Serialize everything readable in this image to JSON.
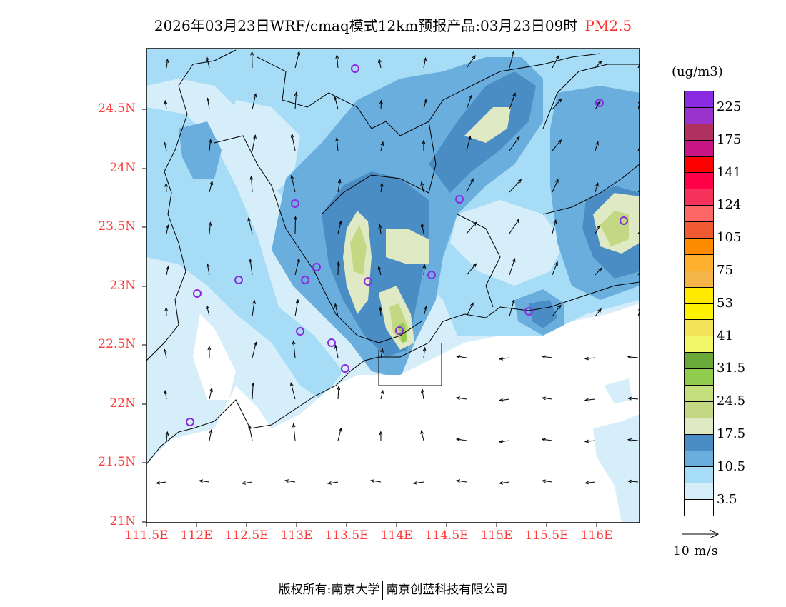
{
  "title": {
    "main": "2026年03月23日WRF/cmaq模式12km预报产品:03月23日09时",
    "variable": "PM2.5"
  },
  "axes": {
    "lat_labels": [
      "24.5N",
      "24N",
      "23.5N",
      "23N",
      "22.5N",
      "22N",
      "21.5N",
      "21N"
    ],
    "lon_labels": [
      "111.5E",
      "112E",
      "112.5E",
      "113E",
      "113.5E",
      "114E",
      "114.5E",
      "115E",
      "115.5E",
      "116E"
    ]
  },
  "legend": {
    "units": "(ug/m3)",
    "colors": [
      "#8a2be2",
      "#9933cc",
      "#b03060",
      "#c71585",
      "#ff0000",
      "#ff0048",
      "#f5325a",
      "#ff6666",
      "#f05a32",
      "#ff8c00",
      "#ffb02e",
      "#f5b54a",
      "#ffea00",
      "#fff200",
      "#f2e35a",
      "#f2f76a",
      "#6aa838",
      "#92cc4e",
      "#c4e07e",
      "#c2d882",
      "#dfe9c3",
      "#4a8cc4",
      "#6aaede",
      "#a6dcf5",
      "#d6eefa",
      "#ffffff"
    ],
    "labels": [
      "225",
      "175",
      "141",
      "124",
      "105",
      "75",
      "53",
      "41",
      "31.5",
      "24.5",
      "17.5",
      "10.5",
      "3.5"
    ],
    "wind_ref": "10 m/s"
  },
  "footer": {
    "copyright": "版权所有:南京大学",
    "company": "南京创蓝科技有限公司"
  }
}
